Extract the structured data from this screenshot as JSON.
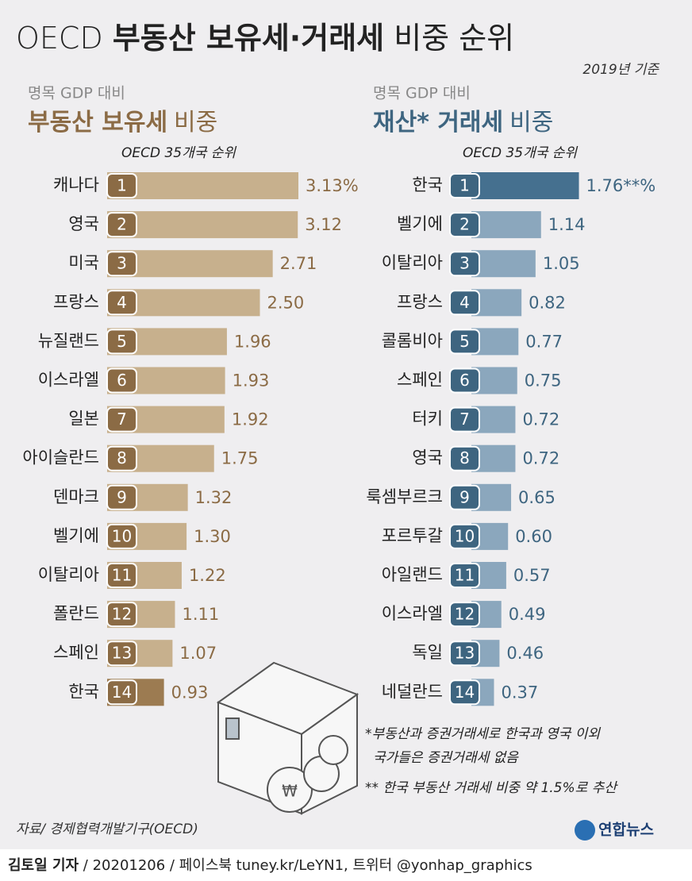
{
  "title": [
    "OECD",
    "부동산 보유세·거래세",
    "비중 순위"
  ],
  "date_note": "2019년 기준",
  "chart_data": [
    {
      "type": "bar",
      "orientation": "horizontal",
      "note": "명목 GDP 대비",
      "title": [
        "부동산 보유세",
        "비중"
      ],
      "subtitle": "OECD 35개국 순위",
      "categories": [
        "캐나다",
        "영국",
        "미국",
        "프랑스",
        "뉴질랜드",
        "이스라엘",
        "일본",
        "아이슬란드",
        "덴마크",
        "벨기에",
        "이탈리아",
        "폴란드",
        "스페인",
        "한국"
      ],
      "ranks": [
        "1",
        "2",
        "3",
        "4",
        "5",
        "6",
        "7",
        "8",
        "9",
        "10",
        "11",
        "12",
        "13",
        "14"
      ],
      "values": [
        3.13,
        3.12,
        2.71,
        2.5,
        1.96,
        1.93,
        1.92,
        1.75,
        1.32,
        1.3,
        1.22,
        1.11,
        1.07,
        0.93
      ],
      "value_labels": [
        "3.13%",
        "3.12",
        "2.71",
        "2.50",
        "1.96",
        "1.93",
        "1.92",
        "1.75",
        "1.32",
        "1.30",
        "1.22",
        "1.11",
        "1.07",
        "0.93"
      ],
      "colors": [
        "#c7b08d",
        "#c7b08d",
        "#c7b08d",
        "#c7b08d",
        "#c7b08d",
        "#c7b08d",
        "#c7b08d",
        "#c7b08d",
        "#c7b08d",
        "#c7b08d",
        "#c7b08d",
        "#c7b08d",
        "#c7b08d",
        "#9c7b51"
      ],
      "accent_color": "#8b6b45"
    },
    {
      "type": "bar",
      "orientation": "horizontal",
      "note": "명목 GDP 대비",
      "title": [
        "재산* 거래세",
        "비중"
      ],
      "subtitle": "OECD 35개국 순위",
      "categories": [
        "한국",
        "벨기에",
        "이탈리아",
        "프랑스",
        "콜롬비아",
        "스페인",
        "터키",
        "영국",
        "룩셈부르크",
        "포르투갈",
        "아일랜드",
        "이스라엘",
        "독일",
        "네덜란드"
      ],
      "ranks": [
        "1",
        "2",
        "3",
        "4",
        "5",
        "6",
        "7",
        "8",
        "9",
        "10",
        "11",
        "12",
        "13",
        "14"
      ],
      "values": [
        1.76,
        1.14,
        1.05,
        0.82,
        0.77,
        0.75,
        0.72,
        0.72,
        0.65,
        0.6,
        0.57,
        0.49,
        0.46,
        0.37
      ],
      "value_labels": [
        "1.76**%",
        "1.14",
        "1.05",
        "0.82",
        "0.77",
        "0.75",
        "0.72",
        "0.72",
        "0.65",
        "0.60",
        "0.57",
        "0.49",
        "0.46",
        "0.37"
      ],
      "colors": [
        "#45708f",
        "#8ba7bd",
        "#8ba7bd",
        "#8ba7bd",
        "#8ba7bd",
        "#8ba7bd",
        "#8ba7bd",
        "#8ba7bd",
        "#8ba7bd",
        "#8ba7bd",
        "#8ba7bd",
        "#8ba7bd",
        "#8ba7bd",
        "#8ba7bd"
      ],
      "accent_color": "#3e6580"
    }
  ],
  "footnotes": [
    [
      "*부동산과 증권거래세로 한국과 영국 이외",
      "국가들은 증권거래세 없음"
    ],
    [
      "** 한국 부동산 거래세 비중 약 1.5%로 추산"
    ]
  ],
  "source": "자료/ 경제협력개발기구(OECD)",
  "logo": "연합뉴스",
  "credit": [
    "김토일 기자",
    " / 20201206 / 페이스북 tuney.kr/LeYN1, 트위터 @yonhap_graphics"
  ]
}
